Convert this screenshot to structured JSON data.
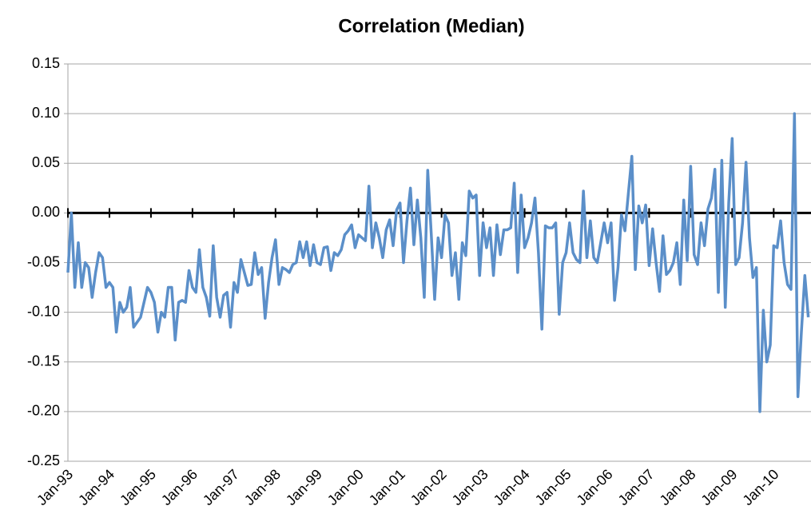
{
  "chart_data": {
    "type": "line",
    "title": "Correlation (Median)",
    "categories": [
      "Jan-93",
      null,
      null,
      null,
      null,
      null,
      null,
      null,
      null,
      null,
      null,
      null,
      "Jan-94",
      null,
      null,
      null,
      null,
      null,
      null,
      null,
      null,
      null,
      null,
      null,
      "Jan-95",
      null,
      null,
      null,
      null,
      null,
      null,
      null,
      null,
      null,
      null,
      null,
      "Jan-96",
      null,
      null,
      null,
      null,
      null,
      null,
      null,
      null,
      null,
      null,
      null,
      "Jan-97",
      null,
      null,
      null,
      null,
      null,
      null,
      null,
      null,
      null,
      null,
      null,
      "Jan-98",
      null,
      null,
      null,
      null,
      null,
      null,
      null,
      null,
      null,
      null,
      null,
      "Jan-99",
      null,
      null,
      null,
      null,
      null,
      null,
      null,
      null,
      null,
      null,
      null,
      "Jan-00",
      null,
      null,
      null,
      null,
      null,
      null,
      null,
      null,
      null,
      null,
      null,
      "Jan-01",
      null,
      null,
      null,
      null,
      null,
      null,
      null,
      null,
      null,
      null,
      null,
      "Jan-02",
      null,
      null,
      null,
      null,
      null,
      null,
      null,
      null,
      null,
      null,
      null,
      "Jan-03",
      null,
      null,
      null,
      null,
      null,
      null,
      null,
      null,
      null,
      null,
      null,
      "Jan-04",
      null,
      null,
      null,
      null,
      null,
      null,
      null,
      null,
      null,
      null,
      null,
      "Jan-05",
      null,
      null,
      null,
      null,
      null,
      null,
      null,
      null,
      null,
      null,
      null,
      "Jan-06",
      null,
      null,
      null,
      null,
      null,
      null,
      null,
      null,
      null,
      null,
      null,
      "Jan-07",
      null,
      null,
      null,
      null,
      null,
      null,
      null,
      null,
      null,
      null,
      null,
      "Jan-08",
      null,
      null,
      null,
      null,
      null,
      null,
      null,
      null,
      null,
      null,
      null,
      "Jan-09",
      null,
      null,
      null,
      null,
      null,
      null,
      null,
      null,
      null,
      null,
      null,
      "Jan-10",
      null,
      null,
      null,
      null,
      null,
      null,
      null,
      null,
      null,
      null
    ],
    "values": [
      -0.06,
      0.0,
      -0.075,
      -0.03,
      -0.075,
      -0.05,
      -0.055,
      -0.085,
      -0.06,
      -0.04,
      -0.045,
      -0.075,
      -0.07,
      -0.075,
      -0.12,
      -0.09,
      -0.1,
      -0.095,
      -0.075,
      -0.115,
      -0.11,
      -0.105,
      -0.09,
      -0.075,
      -0.08,
      -0.09,
      -0.12,
      -0.1,
      -0.105,
      -0.075,
      -0.075,
      -0.128,
      -0.09,
      -0.088,
      -0.09,
      -0.058,
      -0.075,
      -0.08,
      -0.037,
      -0.075,
      -0.085,
      -0.104,
      -0.033,
      -0.085,
      -0.105,
      -0.083,
      -0.08,
      -0.115,
      -0.07,
      -0.08,
      -0.047,
      -0.06,
      -0.073,
      -0.072,
      -0.04,
      -0.062,
      -0.055,
      -0.106,
      -0.07,
      -0.045,
      -0.027,
      -0.072,
      -0.055,
      -0.057,
      -0.06,
      -0.052,
      -0.05,
      -0.029,
      -0.045,
      -0.029,
      -0.053,
      -0.032,
      -0.05,
      -0.052,
      -0.035,
      -0.034,
      -0.058,
      -0.04,
      -0.043,
      -0.037,
      -0.022,
      -0.018,
      -0.012,
      -0.035,
      -0.022,
      -0.025,
      -0.028,
      0.027,
      -0.035,
      -0.01,
      -0.025,
      -0.045,
      -0.017,
      -0.007,
      -0.033,
      0.003,
      0.01,
      -0.05,
      -0.008,
      0.025,
      -0.032,
      0.013,
      -0.025,
      -0.085,
      0.043,
      -0.02,
      -0.087,
      -0.025,
      -0.045,
      -0.002,
      -0.01,
      -0.063,
      -0.04,
      -0.087,
      -0.03,
      -0.043,
      0.022,
      0.015,
      0.018,
      -0.063,
      -0.01,
      -0.035,
      -0.015,
      -0.063,
      -0.012,
      -0.042,
      -0.017,
      -0.017,
      -0.015,
      0.03,
      -0.06,
      0.018,
      -0.035,
      -0.025,
      -0.01,
      0.015,
      -0.04,
      -0.117,
      -0.013,
      -0.015,
      -0.015,
      -0.01,
      -0.102,
      -0.05,
      -0.04,
      -0.01,
      -0.04,
      -0.047,
      -0.05,
      0.022,
      -0.045,
      -0.008,
      -0.045,
      -0.05,
      -0.03,
      -0.01,
      -0.03,
      -0.01,
      -0.088,
      -0.055,
      -0.002,
      -0.018,
      0.02,
      0.057,
      -0.057,
      0.007,
      -0.01,
      0.008,
      -0.053,
      -0.016,
      -0.05,
      -0.079,
      -0.023,
      -0.062,
      -0.058,
      -0.05,
      -0.03,
      -0.072,
      0.013,
      -0.048,
      0.047,
      -0.042,
      -0.052,
      -0.01,
      -0.033,
      0.004,
      0.015,
      0.044,
      -0.08,
      0.053,
      -0.095,
      0.01,
      0.075,
      -0.052,
      -0.045,
      -0.01,
      0.051,
      -0.025,
      -0.065,
      -0.055,
      -0.2,
      -0.098,
      -0.15,
      -0.133,
      -0.033,
      -0.035,
      -0.008,
      -0.05,
      -0.072,
      -0.077,
      0.1,
      -0.185,
      -0.12,
      -0.063,
      -0.105
    ],
    "color": "#5b8fc9",
    "ylim": [
      -0.25,
      0.15
    ],
    "yticks": [
      -0.25,
      {
        "value": -0.2,
        "label": "-0.20"
      },
      -0.15,
      {
        "value": -0.1,
        "label": "-0.10"
      },
      -0.05,
      {
        "value": 0,
        "label": "0.00"
      },
      0.05,
      {
        "value": 0.1,
        "label": "0.10"
      },
      0.15
    ],
    "grid": true
  }
}
